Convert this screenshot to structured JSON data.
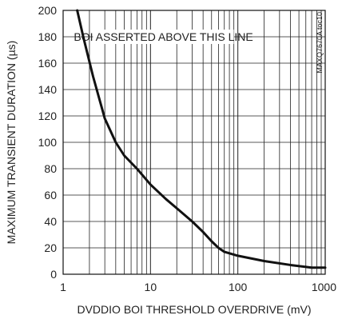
{
  "chart_data": {
    "type": "line",
    "title": "",
    "xlabel": "DVDDIO BOI THRESHOLD OVERDRIVE (mV)",
    "ylabel": "MAXIMUM TRANSIENT DURATION (µs)",
    "x_scale": "log",
    "xlim": [
      1,
      1000
    ],
    "ylim": [
      0,
      200
    ],
    "x_ticks": [
      "1",
      "10",
      "100",
      "1000"
    ],
    "y_ticks": [
      "0",
      "20",
      "40",
      "60",
      "80",
      "100",
      "120",
      "140",
      "160",
      "180",
      "200"
    ],
    "grid": true,
    "annotation": "BOI ASSERTED ABOVE THIS LINE",
    "part_number": "MAXQ7670A toc10",
    "series": [
      {
        "x": [
          1.45,
          1.7,
          2.2,
          3,
          4,
          5,
          7,
          10,
          15,
          20,
          30,
          40,
          50,
          60,
          70,
          100,
          200,
          400,
          700,
          1000
        ],
        "y": [
          200,
          180,
          150,
          118,
          100,
          90,
          80,
          68,
          57,
          50,
          40,
          32,
          25,
          20,
          17,
          14,
          10,
          7,
          5,
          5
        ]
      }
    ]
  }
}
